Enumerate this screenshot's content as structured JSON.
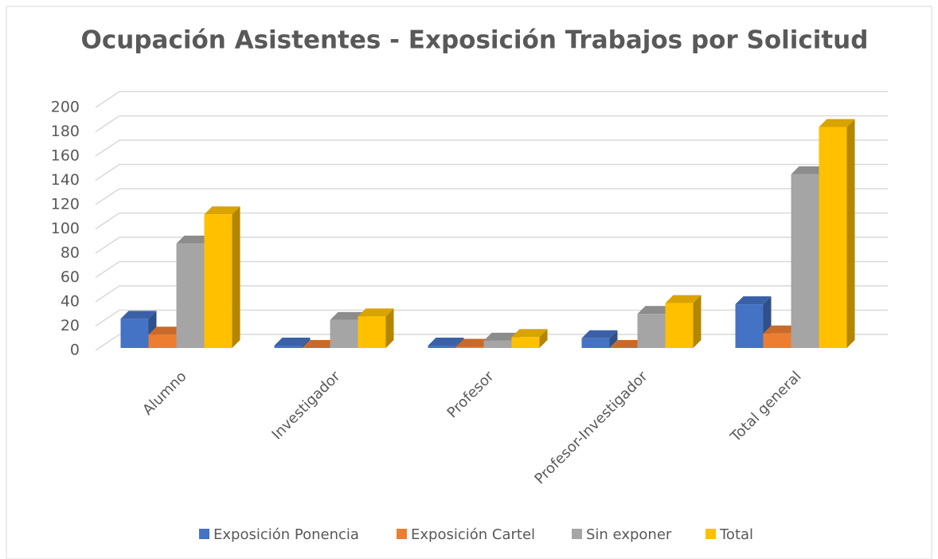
{
  "chart_data": {
    "type": "bar3d",
    "title": "Ocupación Asistentes - Exposición Trabajos por Solicitud",
    "categories": [
      "Alumno",
      "Investigador",
      "Profesor",
      "Profesor-Investigador",
      "Total general"
    ],
    "series": [
      {
        "name": "Exposición Ponencia",
        "color": "#4472c4",
        "values": [
          24,
          2,
          2,
          8,
          36
        ]
      },
      {
        "name": "Exposición Cartel",
        "color": "#ed7d31",
        "values": [
          11,
          0,
          1,
          0,
          12
        ]
      },
      {
        "name": "Sin exponer",
        "color": "#a5a5a5",
        "values": [
          86,
          23,
          6,
          28,
          143
        ]
      },
      {
        "name": "Total",
        "color": "#ffc000",
        "values": [
          110,
          26,
          9,
          37,
          182
        ]
      }
    ],
    "ylim": [
      0,
      200
    ],
    "yticks": [
      0,
      20,
      40,
      60,
      80,
      100,
      120,
      140,
      160,
      180,
      200
    ],
    "grid": true,
    "legend": "bottom"
  }
}
